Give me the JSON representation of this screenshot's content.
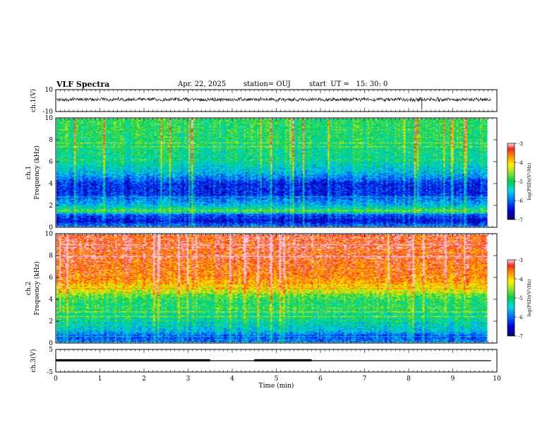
{
  "header": {
    "title": "VLF Spectra",
    "date": "Apr. 22, 2025",
    "station": "station= OUJ",
    "start": "start  UT =   15: 30: 0"
  },
  "chart_data": [
    {
      "type": "line",
      "name": "ch1-waveform",
      "ylabel": "ch.1(V)",
      "ylim": [
        -10,
        10
      ],
      "yticks": [
        "10",
        "-10"
      ],
      "baseline": 1,
      "xlim": [
        0,
        10
      ]
    },
    {
      "type": "heatmap",
      "name": "ch1-spectrogram",
      "ylabel_line1": "ch.1",
      "ylabel_line2": "Frequency (kHz)",
      "ylim": [
        0,
        10
      ],
      "yticks": [
        "0",
        "2",
        "4",
        "6",
        "8",
        "10"
      ],
      "xlim": [
        0,
        10
      ],
      "data_extent_min": 9.8,
      "colorbar": {
        "label": "log(PSD)(V²/Hz)",
        "range": [
          -7,
          -3
        ],
        "ticks": [
          "-3",
          "-4",
          "-5",
          "-6",
          "-7"
        ]
      },
      "level_profile": [
        [
          0,
          -5.8
        ],
        [
          0.5,
          -6.5
        ],
        [
          1,
          -6.2
        ],
        [
          1.5,
          -5.0
        ],
        [
          2,
          -5.6
        ],
        [
          2.5,
          -5.9
        ],
        [
          3,
          -6.3
        ],
        [
          4,
          -6.3
        ],
        [
          4.5,
          -5.9
        ],
        [
          5,
          -5.6
        ],
        [
          6,
          -5.2
        ],
        [
          8,
          -5.0
        ],
        [
          10,
          -4.9
        ]
      ]
    },
    {
      "type": "heatmap",
      "name": "ch2-spectrogram",
      "ylabel_line1": "ch.2",
      "ylabel_line2": "Frequency (kHz)",
      "ylim": [
        0,
        10
      ],
      "yticks": [
        "0",
        "2",
        "4",
        "6",
        "8",
        "10"
      ],
      "xlim": [
        0,
        10
      ],
      "data_extent_min": 9.8,
      "colorbar": {
        "label": "log(PSD)(V²/Hz)",
        "range": [
          -7,
          -3
        ],
        "ticks": [
          "-3",
          "-4",
          "-5",
          "-6",
          "-7"
        ]
      },
      "level_profile": [
        [
          0,
          -5.8
        ],
        [
          0.5,
          -6.2
        ],
        [
          1,
          -5.6
        ],
        [
          2,
          -5.2
        ],
        [
          3,
          -5.0
        ],
        [
          4,
          -4.9
        ],
        [
          4.5,
          -4.6
        ],
        [
          5,
          -4.1
        ],
        [
          5.5,
          -3.8
        ],
        [
          6,
          -3.6
        ],
        [
          8,
          -3.4
        ],
        [
          10,
          -3.3
        ]
      ]
    },
    {
      "type": "line",
      "name": "ch3-signal",
      "ylabel": "ch.3(V)",
      "ylim": [
        -5,
        5
      ],
      "yticks": [
        "5",
        "-5"
      ],
      "xlabel": "Time (min)",
      "xlim": [
        0,
        10
      ],
      "xticks": [
        "0",
        "1",
        "2",
        "3",
        "4",
        "5",
        "6",
        "7",
        "8",
        "9",
        "10"
      ],
      "base_level": 0,
      "step_level": 0.3,
      "steps": [
        [
          0,
          3.5
        ],
        [
          4.5,
          5.8
        ]
      ]
    }
  ]
}
